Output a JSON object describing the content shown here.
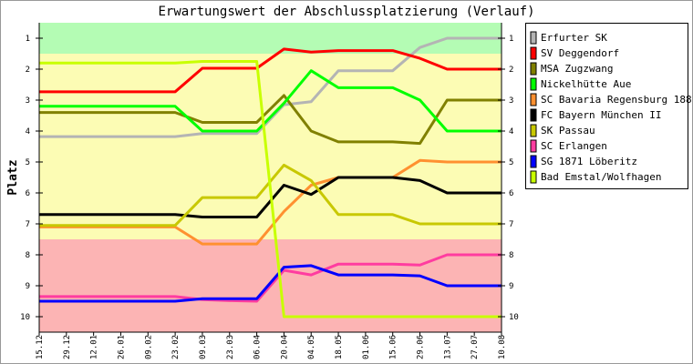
{
  "chart_data": {
    "type": "line",
    "title": "Erwartungswert der Abschlussplatzierung (Verlauf)",
    "xlabel": "",
    "ylabel": "Platz",
    "ylim": [
      10.5,
      0.5
    ],
    "y_inverted": true,
    "yticks": [
      1,
      2,
      3,
      4,
      5,
      6,
      7,
      8,
      9,
      10
    ],
    "grid": false,
    "legend_position": "right",
    "categories": [
      "15.12",
      "29.12",
      "12.01",
      "26.01",
      "09.02",
      "23.02",
      "09.03",
      "23.03",
      "06.04",
      "20.04",
      "04.05",
      "18.05",
      "01.06",
      "15.06",
      "29.06",
      "13.07",
      "27.07",
      "10.08"
    ],
    "bands": [
      {
        "from": 0.5,
        "to": 1.5,
        "color": "#b4fcb4"
      },
      {
        "from": 1.5,
        "to": 7.5,
        "color": "#fcfcb4"
      },
      {
        "from": 7.5,
        "to": 10.5,
        "color": "#fcb4b4"
      }
    ],
    "series": [
      {
        "name": "Erfurter SK",
        "color": "#b4b4b4",
        "values": [
          4.18,
          4.18,
          4.18,
          4.18,
          4.18,
          4.18,
          4.08,
          4.08,
          4.08,
          3.15,
          3.05,
          2.05,
          2.05,
          2.05,
          1.3,
          1.0,
          1.0,
          1.0
        ]
      },
      {
        "name": "SV Deggendorf",
        "color": "#ff0000",
        "values": [
          2.73,
          2.73,
          2.73,
          2.73,
          2.73,
          2.73,
          1.97,
          1.97,
          1.97,
          1.35,
          1.45,
          1.4,
          1.4,
          1.4,
          1.65,
          2.0,
          2.0,
          2.0
        ]
      },
      {
        "name": "MSA Zugzwang",
        "color": "#808000",
        "values": [
          3.4,
          3.4,
          3.4,
          3.4,
          3.4,
          3.4,
          3.72,
          3.72,
          3.72,
          2.85,
          4.0,
          4.35,
          4.35,
          4.35,
          4.4,
          3.0,
          3.0,
          3.0
        ]
      },
      {
        "name": "Nickelhütte Aue",
        "color": "#00ff00",
        "values": [
          3.2,
          3.2,
          3.2,
          3.2,
          3.2,
          3.2,
          4.0,
          4.0,
          4.0,
          3.1,
          2.05,
          2.6,
          2.6,
          2.6,
          3.0,
          4.0,
          4.0,
          4.0
        ]
      },
      {
        "name": "SC Bavaria Regensburg 1881",
        "color": "#ff9030",
        "values": [
          7.1,
          7.1,
          7.1,
          7.1,
          7.1,
          7.1,
          7.65,
          7.65,
          7.65,
          6.6,
          5.75,
          5.5,
          5.5,
          5.5,
          4.95,
          5.0,
          5.0,
          5.0
        ]
      },
      {
        "name": "FC Bayern München II",
        "color": "#000000",
        "values": [
          6.7,
          6.7,
          6.7,
          6.7,
          6.7,
          6.7,
          6.78,
          6.78,
          6.78,
          5.75,
          6.05,
          5.5,
          5.5,
          5.5,
          5.6,
          6.0,
          6.0,
          6.0
        ]
      },
      {
        "name": "SK Passau",
        "color": "#c8c800",
        "values": [
          7.05,
          7.05,
          7.05,
          7.05,
          7.05,
          7.05,
          6.15,
          6.15,
          6.15,
          5.1,
          5.6,
          6.7,
          6.7,
          6.7,
          7.0,
          7.0,
          7.0,
          7.0
        ]
      },
      {
        "name": "SC Erlangen",
        "color": "#ff3ca0",
        "values": [
          9.35,
          9.35,
          9.35,
          9.35,
          9.35,
          9.35,
          9.45,
          9.48,
          9.5,
          8.5,
          8.65,
          8.3,
          8.3,
          8.3,
          8.33,
          8.0,
          8.0,
          8.0
        ]
      },
      {
        "name": "SG 1871 Löberitz",
        "color": "#0000ff",
        "values": [
          9.5,
          9.5,
          9.5,
          9.5,
          9.5,
          9.5,
          9.42,
          9.42,
          9.42,
          8.4,
          8.35,
          8.65,
          8.65,
          8.65,
          8.68,
          9.0,
          9.0,
          9.0
        ]
      },
      {
        "name": "Bad Emstal/Wolfhagen",
        "color": "#c8ff00",
        "values": [
          1.8,
          1.8,
          1.8,
          1.8,
          1.8,
          1.8,
          1.75,
          1.75,
          1.75,
          10,
          10,
          10,
          10,
          10,
          10,
          10,
          10,
          10
        ]
      }
    ]
  }
}
